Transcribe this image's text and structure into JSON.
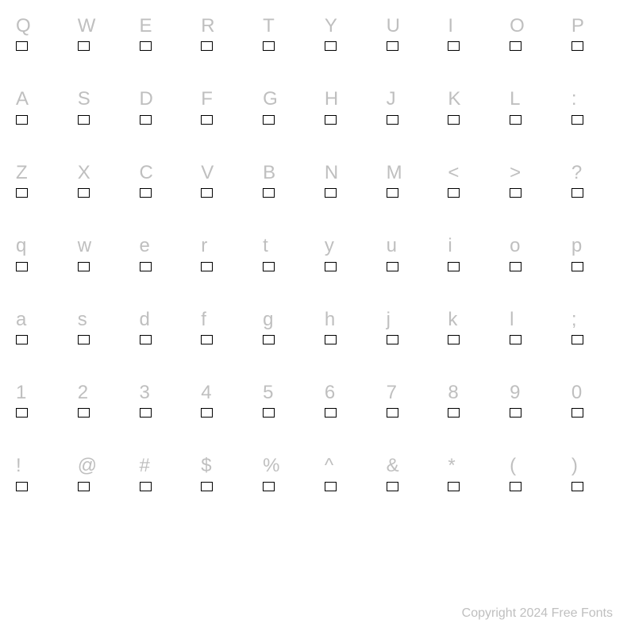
{
  "chart": {
    "type": "font-character-map",
    "columns": 10,
    "rows": [
      [
        "Q",
        "W",
        "E",
        "R",
        "T",
        "Y",
        "U",
        "I",
        "O",
        "P"
      ],
      [
        "A",
        "S",
        "D",
        "F",
        "G",
        "H",
        "J",
        "K",
        "L",
        ":"
      ],
      [
        "Z",
        "X",
        "C",
        "V",
        "B",
        "N",
        "M",
        "<",
        ">",
        "?"
      ],
      [
        "q",
        "w",
        "e",
        "r",
        "t",
        "y",
        "u",
        "i",
        "o",
        "p"
      ],
      [
        "a",
        "s",
        "d",
        "f",
        "g",
        "h",
        "j",
        "k",
        "l",
        ";"
      ],
      [
        "1",
        "2",
        "3",
        "4",
        "5",
        "6",
        "7",
        "8",
        "9",
        "0"
      ],
      [
        "!",
        "@",
        "#",
        "$",
        "%",
        "^",
        "&",
        "*",
        "(",
        ")"
      ]
    ],
    "label_color": "#bfbfbf",
    "label_fontsize": 24,
    "glyph_box": {
      "width": 15,
      "height": 12,
      "border_color": "#000000",
      "fill": "#ffffff"
    },
    "background_color": "#ffffff",
    "row_gap": 48
  },
  "footer": {
    "text": "Copyright 2024 Free Fonts",
    "color": "#bfbfbf",
    "fontsize": 16
  }
}
